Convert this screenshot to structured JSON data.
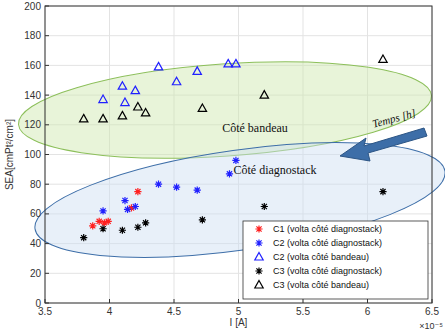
{
  "chart_data": {
    "type": "scatter",
    "xlabel": "I [A]",
    "ylabel": "SEA[cmPt²/cm²]",
    "annotations": [
      "×10⁻⁵",
      "Côté bandeau",
      "Côté diagnostack",
      "Temps [h]"
    ],
    "xlim": [
      3.5,
      6.5
    ],
    "xticks": [
      3.5,
      4,
      4.5,
      5,
      5.5,
      6,
      6.5
    ],
    "ylim": [
      0,
      200
    ],
    "yticks": [
      0,
      20,
      40,
      60,
      80,
      100,
      120,
      140,
      160,
      180,
      200
    ],
    "grid": true,
    "legend": "lower right",
    "series": [
      {
        "name": "C1 (volta côté diagnostack)",
        "color": "#ff2020",
        "marker": "star",
        "x": [
          3.87,
          3.92,
          3.96,
          3.99,
          4.17,
          4.22
        ],
        "values": [
          52,
          55,
          54,
          55,
          64,
          75
        ]
      },
      {
        "name": "C2 (volta côté diagnostack)",
        "color": "#2020ff",
        "marker": "star",
        "x": [
          3.95,
          4.12,
          4.14,
          4.2,
          4.38,
          4.52,
          4.68,
          4.93,
          4.98
        ],
        "values": [
          62,
          69,
          63,
          65,
          80,
          78,
          76,
          87,
          96
        ]
      },
      {
        "name": "C2 (volta côté bandeau)",
        "color": "#2020ff",
        "marker": "triangle",
        "x": [
          3.95,
          4.1,
          4.12,
          4.2,
          4.38,
          4.52,
          4.68,
          4.92,
          4.98
        ],
        "values": [
          137,
          146,
          135,
          143,
          159,
          149,
          156,
          161,
          161
        ]
      },
      {
        "name": "C3 (volta côté diagnostack)",
        "color": "#000000",
        "marker": "star",
        "x": [
          3.8,
          3.95,
          4.1,
          4.22,
          4.28,
          4.72,
          5.2,
          6.12
        ],
        "values": [
          44,
          50,
          49,
          51,
          54,
          56,
          65,
          75
        ]
      },
      {
        "name": "C3 (volta côté bandeau)",
        "color": "#000000",
        "marker": "triangle",
        "x": [
          3.8,
          3.95,
          4.1,
          4.22,
          4.28,
          4.72,
          5.2,
          6.12
        ],
        "values": [
          124,
          124,
          126,
          132,
          128,
          131,
          140,
          164
        ]
      }
    ]
  }
}
